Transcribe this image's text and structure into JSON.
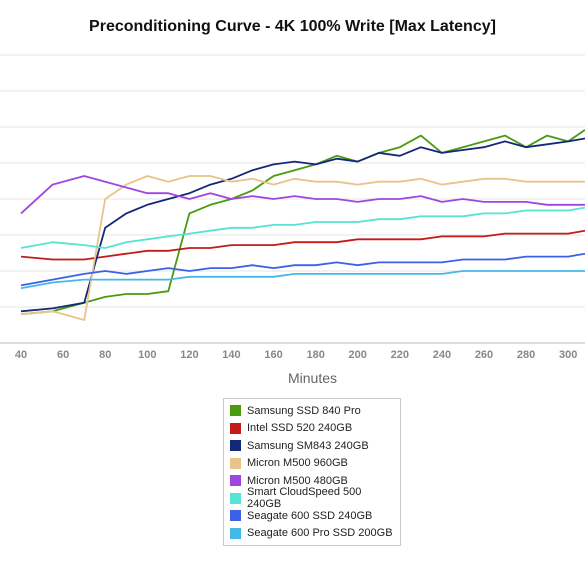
{
  "chart_data": {
    "type": "line",
    "title": "Preconditioning Curve - 4K 100% Write [Max Latency]",
    "xlabel": "Minutes",
    "ylabel": "",
    "xlim": [
      30,
      308
    ],
    "ylim": [
      0,
      100
    ],
    "xticks": [
      40,
      60,
      80,
      100,
      120,
      140,
      160,
      180,
      200,
      220,
      240,
      260,
      280,
      300
    ],
    "grid": true,
    "legend_position": "bottom-center",
    "sample_points": [
      40,
      55,
      70,
      80,
      90,
      100,
      110,
      120,
      130,
      140,
      150,
      160,
      170,
      180,
      190,
      200,
      210,
      220,
      230,
      240,
      250,
      260,
      270,
      280,
      290,
      300,
      308
    ],
    "series": [
      {
        "name": "Samsung SSD 840 Pro",
        "color": "#4a9a10",
        "values": [
          10,
          11,
          14,
          16,
          17,
          17,
          18,
          45,
          48,
          50,
          53,
          58,
          60,
          62,
          65,
          63,
          66,
          68,
          72,
          66,
          68,
          70,
          72,
          68,
          72,
          70,
          74
        ]
      },
      {
        "name": "Intel SSD 520 240GB",
        "color": "#c41a1a",
        "values": [
          30,
          29,
          29,
          30,
          31,
          32,
          32,
          33,
          33,
          34,
          34,
          34,
          35,
          35,
          35,
          36,
          36,
          36,
          36,
          37,
          37,
          37,
          38,
          38,
          38,
          38,
          39
        ]
      },
      {
        "name": "Samsung SM843 240GB",
        "color": "#14287a",
        "values": [
          11,
          12,
          14,
          40,
          45,
          48,
          50,
          52,
          55,
          57,
          60,
          62,
          63,
          62,
          64,
          63,
          66,
          65,
          68,
          66,
          67,
          68,
          70,
          68,
          69,
          70,
          71
        ]
      },
      {
        "name": "Micron M500 960GB",
        "color": "#e8c48a",
        "values": [
          10,
          11,
          8,
          50,
          55,
          58,
          56,
          58,
          58,
          56,
          57,
          55,
          57,
          56,
          56,
          55,
          56,
          56,
          57,
          55,
          56,
          57,
          57,
          56,
          56,
          56,
          56
        ]
      },
      {
        "name": "Micron M500 480GB",
        "color": "#a045e0",
        "values": [
          45,
          55,
          58,
          56,
          54,
          52,
          52,
          50,
          52,
          50,
          51,
          50,
          51,
          50,
          50,
          49,
          50,
          50,
          51,
          49,
          50,
          49,
          49,
          49,
          48,
          48,
          48
        ]
      },
      {
        "name": "Smart CloudSpeed 500 240GB",
        "color": "#55e4d4",
        "values": [
          33,
          35,
          34,
          33,
          35,
          36,
          37,
          38,
          39,
          40,
          40,
          41,
          41,
          42,
          42,
          42,
          43,
          43,
          44,
          44,
          44,
          45,
          45,
          46,
          46,
          46,
          47
        ]
      },
      {
        "name": "Seagate 600 SSD 240GB",
        "color": "#3a62e8",
        "values": [
          20,
          22,
          24,
          25,
          24,
          25,
          26,
          25,
          26,
          26,
          27,
          26,
          27,
          27,
          28,
          27,
          28,
          28,
          28,
          28,
          29,
          29,
          29,
          30,
          30,
          30,
          31
        ]
      },
      {
        "name": "Seagate 600 Pro SSD 200GB",
        "color": "#45b8ea",
        "values": [
          19,
          21,
          22,
          22,
          22,
          22,
          22,
          23,
          23,
          23,
          23,
          23,
          24,
          24,
          24,
          24,
          24,
          24,
          24,
          24,
          25,
          25,
          25,
          25,
          25,
          25,
          25
        ]
      }
    ]
  }
}
